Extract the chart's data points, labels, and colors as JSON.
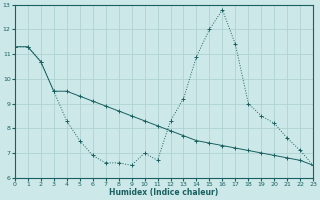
{
  "xlabel": "Humidex (Indice chaleur)",
  "bg_color": "#cce8e8",
  "grid_color": "#aacece",
  "line_color": "#1a6060",
  "x_spiky": [
    0,
    1,
    2,
    3,
    4,
    5,
    6,
    7,
    8,
    9,
    10,
    11,
    12,
    13,
    14,
    15,
    16,
    17,
    18,
    19,
    20,
    21,
    22,
    23
  ],
  "y_spiky": [
    11.3,
    11.3,
    10.7,
    9.5,
    8.3,
    7.5,
    6.9,
    6.6,
    6.6,
    6.5,
    7.0,
    6.7,
    8.3,
    9.2,
    10.9,
    12.0,
    12.8,
    11.4,
    9.0,
    8.5,
    8.2,
    7.6,
    7.1,
    6.5
  ],
  "x_smooth": [
    0,
    1,
    2,
    3,
    4,
    5,
    6,
    7,
    8,
    9,
    10,
    11,
    12,
    13,
    14,
    15,
    16,
    17,
    18,
    19,
    20,
    21,
    22,
    23
  ],
  "y_smooth": [
    11.3,
    11.3,
    10.7,
    9.5,
    9.5,
    9.3,
    9.1,
    8.9,
    8.7,
    8.5,
    8.3,
    8.1,
    7.9,
    7.7,
    7.5,
    7.4,
    7.3,
    7.2,
    7.1,
    7.0,
    6.9,
    6.8,
    6.7,
    6.5
  ],
  "ylim": [
    6,
    13
  ],
  "xlim": [
    0,
    23
  ],
  "yticks": [
    6,
    7,
    8,
    9,
    10,
    11,
    12,
    13
  ],
  "xticks": [
    0,
    1,
    2,
    3,
    4,
    5,
    6,
    7,
    8,
    9,
    10,
    11,
    12,
    13,
    14,
    15,
    16,
    17,
    18,
    19,
    20,
    21,
    22,
    23
  ]
}
